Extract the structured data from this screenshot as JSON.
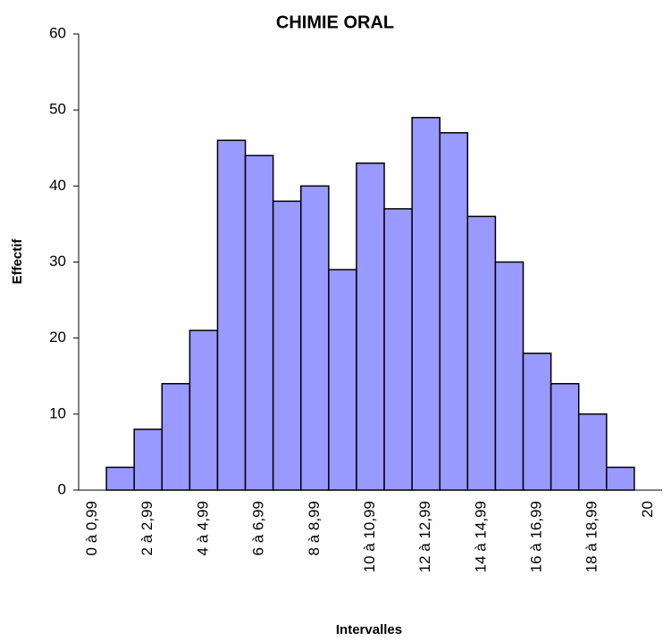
{
  "chart_data": {
    "type": "bar",
    "title": "CHIMIE ORAL",
    "x_label": "Intervalles",
    "y_label": "Effectif",
    "categories": [
      "0 à 0,99",
      null,
      "2 à 2,99",
      null,
      "4 à 4,99",
      null,
      "6 à 6,99",
      null,
      "8 à 8,99",
      null,
      "10 à 10,99",
      null,
      "12 à 12,99",
      null,
      "14 à 14,99",
      null,
      "16 à 16,99",
      null,
      "18 à 18,99",
      null,
      "20"
    ],
    "values": [
      0,
      3,
      8,
      14,
      21,
      46,
      44,
      38,
      40,
      29,
      43,
      37,
      49,
      47,
      36,
      30,
      18,
      14,
      10,
      3,
      0
    ],
    "color": "#9999ff",
    "ylim": [
      0,
      60
    ],
    "yticks": [
      0,
      10,
      20,
      30,
      40,
      50,
      60
    ],
    "grid": false
  }
}
